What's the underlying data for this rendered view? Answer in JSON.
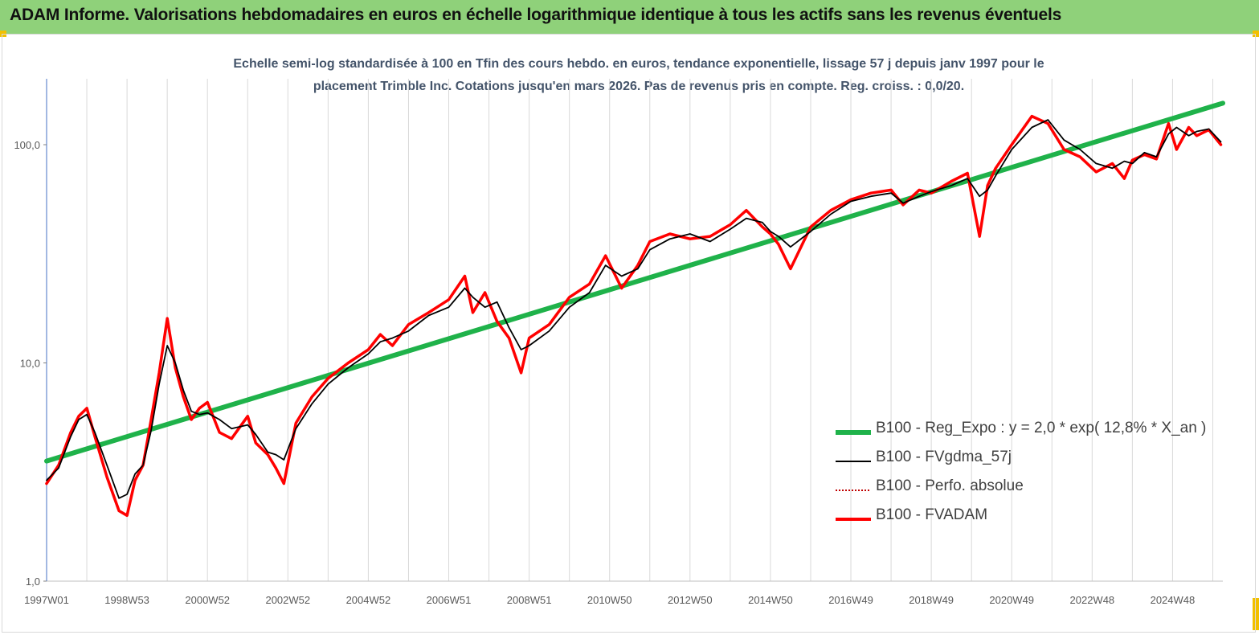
{
  "banner": {
    "title": "ADAM Informe. Valorisations hebdomadaires en euros en échelle logarithmique identique à tous les actifs sans les revenus éventuels",
    "color": "#8fd17a"
  },
  "chart_data": {
    "type": "line",
    "title_line1": "Echelle semi-log standardisée à 100 en Tfin des cours hebdo. en euros, tendance exponentielle, lissage 57 j depuis janv 1997 pour le",
    "title_line2": "placement Trimble Inc. Cotations jusqu'en mars 2026.  Pas de revenus pris en compte. Reg. croiss. : 0,0/20.",
    "y_scale": "log",
    "ylim": [
      1,
      200
    ],
    "y_ticks": [
      {
        "value": 1,
        "label": "1,0"
      },
      {
        "value": 10,
        "label": "10,0"
      },
      {
        "value": 100,
        "label": "100,0"
      }
    ],
    "xlim": [
      1997.0,
      2026.25
    ],
    "x_ticks": [
      {
        "value": 1997.0,
        "label": "1997W01"
      },
      {
        "value": 1999.0,
        "label": "1998W53"
      },
      {
        "value": 2001.0,
        "label": "2000W52"
      },
      {
        "value": 2003.0,
        "label": "2002W52"
      },
      {
        "value": 2005.0,
        "label": "2004W52"
      },
      {
        "value": 2007.0,
        "label": "2006W51"
      },
      {
        "value": 2009.0,
        "label": "2008W51"
      },
      {
        "value": 2011.0,
        "label": "2010W50"
      },
      {
        "value": 2013.0,
        "label": "2012W50"
      },
      {
        "value": 2015.0,
        "label": "2014W50"
      },
      {
        "value": 2017.0,
        "label": "2016W49"
      },
      {
        "value": 2019.0,
        "label": "2018W49"
      },
      {
        "value": 2021.0,
        "label": "2020W49"
      },
      {
        "value": 2023.0,
        "label": "2022W48"
      },
      {
        "value": 2025.0,
        "label": "2024W48"
      }
    ],
    "grid": "vertical",
    "legend_position": "bottom-right",
    "x": [
      1997.0,
      1997.3,
      1997.6,
      1997.8,
      1998.0,
      1998.2,
      1998.5,
      1998.8,
      1999.0,
      1999.2,
      1999.4,
      1999.6,
      1999.8,
      2000.0,
      2000.2,
      2000.4,
      2000.6,
      2000.8,
      2001.0,
      2001.3,
      2001.6,
      2002.0,
      2002.2,
      2002.5,
      2002.7,
      2002.9,
      2003.2,
      2003.6,
      2004.0,
      2004.5,
      2005.0,
      2005.3,
      2005.6,
      2006.0,
      2006.5,
      2007.0,
      2007.4,
      2007.6,
      2007.9,
      2008.2,
      2008.5,
      2008.8,
      2009.0,
      2009.5,
      2010.0,
      2010.5,
      2010.9,
      2011.3,
      2011.7,
      2012.0,
      2012.5,
      2013.0,
      2013.5,
      2014.0,
      2014.4,
      2014.8,
      2015.0,
      2015.2,
      2015.5,
      2016.0,
      2016.5,
      2017.0,
      2017.5,
      2018.0,
      2018.3,
      2018.7,
      2019.0,
      2019.5,
      2019.9,
      2020.2,
      2020.4,
      2020.6,
      2021.0,
      2021.5,
      2021.9,
      2022.3,
      2022.7,
      2023.1,
      2023.5,
      2023.8,
      2024.0,
      2024.3,
      2024.6,
      2024.9,
      2025.1,
      2025.4,
      2025.6,
      2025.9,
      2026.2
    ],
    "series": [
      {
        "name": "B100 - Reg_Expo : y = 2,0 * exp( 12,8% *  X_an )",
        "color": "#1fb24a",
        "style": "solid-thick",
        "trend": {
          "base": 2.0,
          "rate": 0.128,
          "start": 1997.0,
          "start_value": 3.55,
          "end": 2026.25,
          "end_value": 155
        }
      },
      {
        "name": "B100 - FVgdma_57j",
        "color": "#000000",
        "style": "solid-thin",
        "values": [
          2.9,
          3.3,
          4.6,
          5.5,
          5.8,
          4.8,
          3.4,
          2.4,
          2.5,
          3.1,
          3.4,
          4.9,
          8.0,
          12.0,
          10.0,
          7.5,
          6.0,
          5.8,
          5.9,
          5.5,
          5.0,
          5.2,
          4.7,
          3.9,
          3.8,
          3.6,
          5.0,
          6.5,
          8.0,
          9.5,
          11.0,
          12.5,
          13.0,
          14.0,
          16.5,
          18.0,
          22.0,
          20.0,
          18.0,
          19.0,
          14.5,
          11.5,
          12.0,
          14.0,
          18.0,
          21.0,
          28.0,
          25.0,
          27.0,
          33.0,
          37.0,
          39.0,
          36.0,
          41.0,
          46.0,
          44.0,
          40.0,
          38.0,
          34.0,
          40.0,
          48.0,
          55.0,
          58.0,
          60.0,
          54.0,
          58.0,
          61.0,
          65.0,
          70.0,
          58.0,
          62.0,
          72.0,
          95.0,
          120.0,
          130.0,
          105.0,
          95.0,
          82.0,
          78.0,
          84.0,
          82.0,
          92.0,
          88.0,
          112.0,
          120.0,
          110.0,
          115.0,
          118.0,
          103.0
        ]
      },
      {
        "name": "B100 - Perfo. absolue",
        "color": "#c00000",
        "style": "dotted"
      },
      {
        "name": "B100 - FVADAM",
        "color": "#ff0000",
        "style": "solid-thick",
        "values": [
          2.8,
          3.4,
          4.8,
          5.7,
          6.2,
          4.6,
          3.0,
          2.1,
          2.0,
          2.9,
          3.4,
          5.5,
          9.0,
          16.0,
          9.5,
          7.0,
          5.5,
          6.2,
          6.6,
          4.8,
          4.5,
          5.7,
          4.3,
          3.8,
          3.3,
          2.8,
          5.3,
          7.0,
          8.5,
          10.0,
          11.5,
          13.5,
          12.0,
          15.0,
          17.0,
          19.5,
          25.0,
          17.0,
          21.0,
          15.5,
          13.0,
          9.0,
          13.0,
          15.0,
          20.0,
          23.0,
          31.0,
          22.0,
          28.0,
          36.0,
          39.0,
          37.0,
          38.0,
          43.0,
          50.0,
          42.0,
          39.0,
          35.0,
          27.0,
          42.0,
          50.0,
          56.0,
          60.0,
          62.0,
          53.0,
          62.0,
          60.0,
          68.0,
          74.0,
          38.0,
          65.0,
          78.0,
          100.0,
          135.0,
          125.0,
          95.0,
          88.0,
          75.0,
          82.0,
          70.0,
          85.0,
          90.0,
          86.0,
          125.0,
          95.0,
          120.0,
          110.0,
          117.0,
          100.0
        ]
      }
    ]
  }
}
